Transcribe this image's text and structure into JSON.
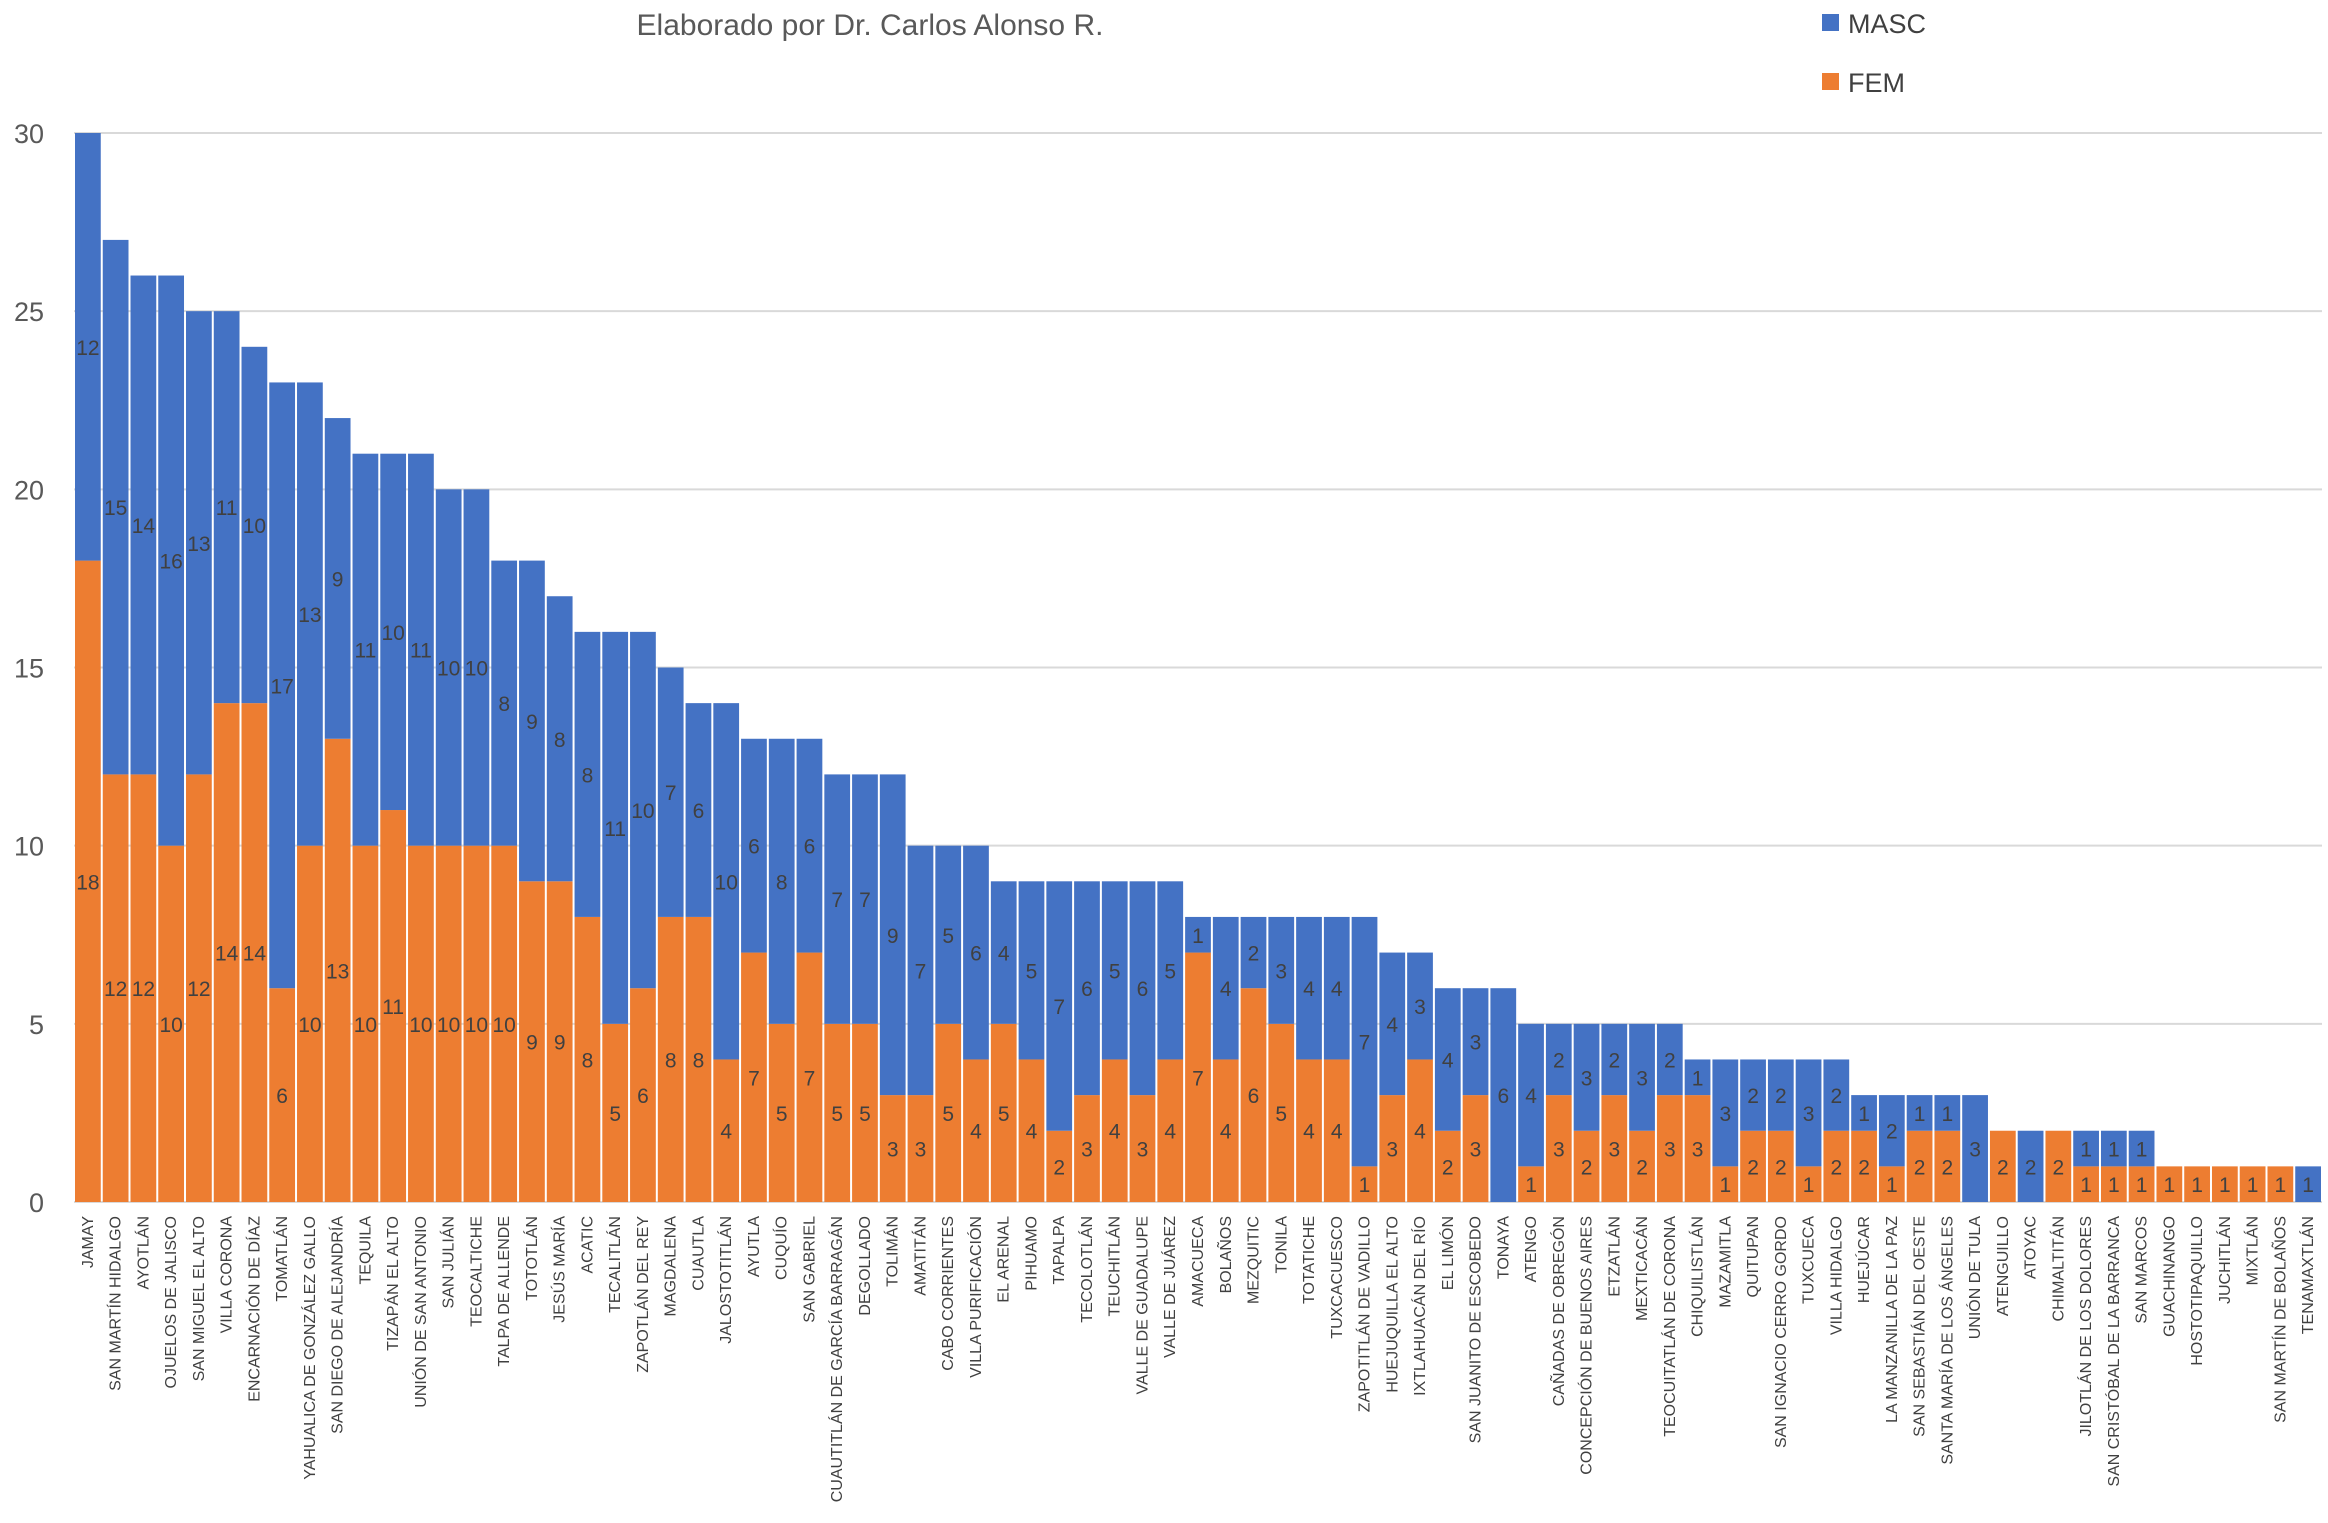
{
  "chart_data": {
    "type": "bar",
    "stacked": true,
    "title": "Elaborado por Dr. Carlos Alonso R.",
    "xlabel": "",
    "ylabel": "",
    "ylim": [
      0,
      30
    ],
    "yticks": [
      0,
      5,
      10,
      15,
      20,
      25,
      30
    ],
    "grid": true,
    "legend_position": "top-right",
    "categories": [
      "JAMAY",
      "SAN MARTÍN HIDALGO",
      "AYOTLÁN",
      "OJUELOS DE JALISCO",
      "SAN MIGUEL EL ALTO",
      "VILLA CORONA",
      "ENCARNACIÓN DE DÍAZ",
      "TOMATLÁN",
      "YAHUALICA DE GONZÁLEZ GALLO",
      "SAN DIEGO DE ALEJANDRÍA",
      "TEQUILA",
      "TIZAPÁN EL ALTO",
      "UNIÓN DE SAN ANTONIO",
      "SAN JULIÁN",
      "TEOCALTICHE",
      "TALPA DE ALLENDE",
      "TOTOTLÁN",
      "JESÚS MARÍA",
      "ACATIC",
      "TECALITLÁN",
      "ZAPOTLÁN DEL REY",
      "MAGDALENA",
      "CUAUTLA",
      "JALOSTOTITLÁN",
      "AYUTLA",
      "CUQUÍO",
      "SAN GABRIEL",
      "CUAUTITLÁN DE GARCÍA BARRAGÁN",
      "DEGOLLADO",
      "TOLIMÁN",
      "AMATITÁN",
      "CABO CORRIENTES",
      "VILLA PURIFICACIÓN",
      "EL ARENAL",
      "PIHUAMO",
      "TAPALPA",
      "TECOLOTLÁN",
      "TEUCHITLÁN",
      "VALLE DE GUADALUPE",
      "VALLE DE JUÁREZ",
      "AMACUECA",
      "BOLAÑOS",
      "MEZQUITIC",
      "TONILA",
      "TOTATICHE",
      "TUXCACUESCO",
      "ZAPOTITLÁN DE VADILLO",
      "HUEJUQUILLA EL ALTO",
      "IXTLAHUACÁN DEL RÍO",
      "EL LIMÓN",
      "SAN JUANITO DE ESCOBEDO",
      "TONAYA",
      "ATENGO",
      "CAÑADAS DE OBREGÓN",
      "CONCEPCIÓN DE BUENOS AIRES",
      "ETZATLÁN",
      "MEXTICACÁN",
      "TEOCUITATLÁN DE CORONA",
      "CHIQUILISTLÁN",
      "MAZAMITLA",
      "QUITUPAN",
      "SAN IGNACIO CERRO GORDO",
      "TUXCUECA",
      "VILLA HIDALGO",
      "HUEJÚCAR",
      "LA MANZANILLA DE LA PAZ",
      "SAN SEBASTIÁN DEL OESTE",
      "SANTA MARÍA DE LOS ÁNGELES",
      "UNIÓN DE TULA",
      "ATENGUILLO",
      "ATOYAC",
      "CHIMALTITÁN",
      "JILOTLÁN DE LOS DOLORES",
      "SAN CRISTÓBAL DE LA BARRANCA",
      "SAN MARCOS",
      "GUACHINANGO",
      "HOSTOTIPAQUILLO",
      "JUCHITLÁN",
      "MIXTLÁN",
      "SAN MARTÍN DE BOLAÑOS",
      "TENAMAXTLÁN"
    ],
    "series": [
      {
        "name": "FEM",
        "color": "#ED7D31",
        "values": [
          18,
          12,
          12,
          10,
          12,
          14,
          14,
          6,
          10,
          13,
          10,
          11,
          10,
          10,
          10,
          10,
          9,
          9,
          8,
          5,
          6,
          8,
          8,
          4,
          7,
          5,
          7,
          5,
          5,
          3,
          3,
          5,
          4,
          5,
          4,
          2,
          3,
          4,
          3,
          4,
          7,
          4,
          6,
          5,
          4,
          4,
          1,
          3,
          4,
          2,
          3,
          0,
          1,
          3,
          2,
          3,
          2,
          3,
          3,
          1,
          2,
          2,
          1,
          2,
          2,
          1,
          2,
          2,
          0,
          2,
          0,
          2,
          1,
          1,
          1,
          1,
          1,
          1,
          1,
          1,
          0
        ]
      },
      {
        "name": "MASC",
        "color": "#4472C4",
        "values": [
          12,
          15,
          14,
          16,
          13,
          11,
          10,
          17,
          13,
          9,
          11,
          10,
          11,
          10,
          10,
          8,
          9,
          8,
          8,
          11,
          10,
          7,
          6,
          10,
          6,
          8,
          6,
          7,
          7,
          9,
          7,
          5,
          6,
          4,
          5,
          7,
          6,
          5,
          6,
          5,
          1,
          4,
          2,
          3,
          4,
          4,
          7,
          4,
          3,
          4,
          3,
          6,
          4,
          2,
          3,
          2,
          3,
          2,
          1,
          3,
          2,
          2,
          3,
          2,
          1,
          2,
          1,
          1,
          3,
          0,
          2,
          0,
          1,
          1,
          1,
          0,
          0,
          0,
          0,
          0,
          1
        ]
      }
    ],
    "legend": [
      {
        "name": "MASC",
        "color": "#4472C4"
      },
      {
        "name": "FEM",
        "color": "#ED7D31"
      }
    ]
  }
}
